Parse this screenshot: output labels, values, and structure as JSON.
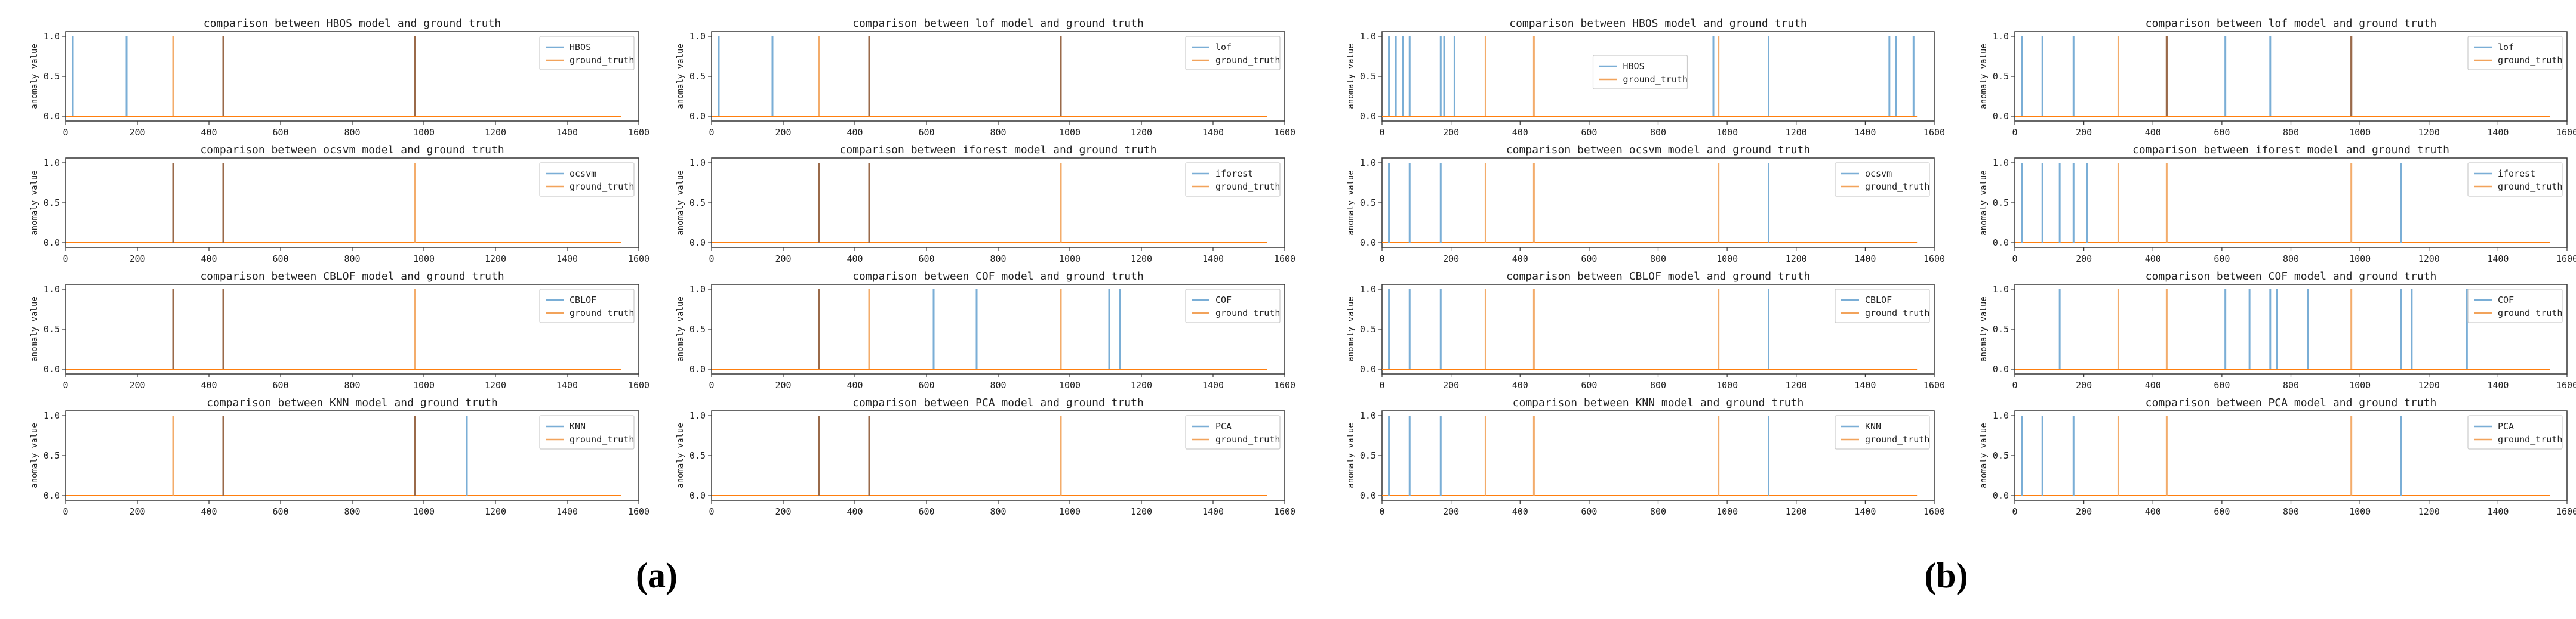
{
  "panel_labels": [
    "(a)",
    "(b)"
  ],
  "colors": {
    "model": "#7aaed6",
    "ground_truth": "#f2a35b",
    "overlap": "#9a6a4a",
    "axis": "#333333",
    "baseline_model": "#1f77b4",
    "baseline_gt": "#ff7f0e"
  },
  "axis": {
    "ylabel": "anomaly value",
    "xticks": [
      "0",
      "200",
      "400",
      "600",
      "800",
      "1000",
      "1200",
      "1400",
      "1600"
    ],
    "yticks": [
      "0.0",
      "0.5",
      "1.0"
    ]
  },
  "chart_data": [
    {
      "group": "(a)",
      "model": "HBOS",
      "type": "line",
      "title": "comparison between HBOS model and ground truth",
      "legend": [
        "HBOS",
        "ground_truth"
      ],
      "legend_position": "upper-right",
      "xlim": [
        0,
        1600
      ],
      "ylim": [
        0,
        1
      ],
      "series_end": 1550,
      "model_spikes": [
        20,
        170,
        440,
        975
      ],
      "ground_truth_spikes": [
        300,
        440,
        975
      ]
    },
    {
      "group": "(a)",
      "model": "lof",
      "type": "line",
      "title": "comparison between lof model and ground truth",
      "legend": [
        "lof",
        "ground_truth"
      ],
      "legend_position": "upper-right",
      "xlim": [
        0,
        1600
      ],
      "ylim": [
        0,
        1
      ],
      "series_end": 1550,
      "model_spikes": [
        20,
        170,
        440,
        975
      ],
      "ground_truth_spikes": [
        300,
        440,
        975
      ]
    },
    {
      "group": "(a)",
      "model": "ocsvm",
      "type": "line",
      "title": "comparison between ocsvm model and ground truth",
      "legend": [
        "ocsvm",
        "ground_truth"
      ],
      "legend_position": "upper-right",
      "xlim": [
        0,
        1600
      ],
      "ylim": [
        0,
        1
      ],
      "series_end": 1550,
      "model_spikes": [
        300,
        440
      ],
      "ground_truth_spikes": [
        300,
        440,
        975
      ]
    },
    {
      "group": "(a)",
      "model": "iforest",
      "type": "line",
      "title": "comparison between iforest model and ground truth",
      "legend": [
        "iforest",
        "ground_truth"
      ],
      "legend_position": "upper-right",
      "xlim": [
        0,
        1600
      ],
      "ylim": [
        0,
        1
      ],
      "series_end": 1550,
      "model_spikes": [
        300,
        440
      ],
      "ground_truth_spikes": [
        300,
        440,
        975
      ]
    },
    {
      "group": "(a)",
      "model": "CBLOF",
      "type": "line",
      "title": "comparison between CBLOF model and ground truth",
      "legend": [
        "CBLOF",
        "ground_truth"
      ],
      "legend_position": "upper-right",
      "xlim": [
        0,
        1600
      ],
      "ylim": [
        0,
        1
      ],
      "series_end": 1550,
      "model_spikes": [
        300,
        440
      ],
      "ground_truth_spikes": [
        300,
        440,
        975
      ]
    },
    {
      "group": "(a)",
      "model": "COF",
      "type": "line",
      "title": "comparison between COF model and ground truth",
      "legend": [
        "COF",
        "ground_truth"
      ],
      "legend_position": "upper-right",
      "xlim": [
        0,
        1600
      ],
      "ylim": [
        0,
        1
      ],
      "series_end": 1550,
      "model_spikes": [
        300,
        620,
        740,
        1110,
        1140
      ],
      "ground_truth_spikes": [
        300,
        440,
        975
      ]
    },
    {
      "group": "(a)",
      "model": "KNN",
      "type": "line",
      "title": "comparison between KNN model and ground truth",
      "legend": [
        "KNN",
        "ground_truth"
      ],
      "legend_position": "upper-right",
      "xlim": [
        0,
        1600
      ],
      "ylim": [
        0,
        1
      ],
      "series_end": 1550,
      "model_spikes": [
        440,
        975,
        1120
      ],
      "ground_truth_spikes": [
        300,
        440,
        975
      ]
    },
    {
      "group": "(a)",
      "model": "PCA",
      "type": "line",
      "title": "comparison between PCA model and ground truth",
      "legend": [
        "PCA",
        "ground_truth"
      ],
      "legend_position": "upper-right",
      "xlim": [
        0,
        1600
      ],
      "ylim": [
        0,
        1
      ],
      "series_end": 1550,
      "model_spikes": [
        300,
        440
      ],
      "ground_truth_spikes": [
        300,
        440,
        975
      ]
    },
    {
      "group": "(b)",
      "model": "HBOS",
      "type": "line",
      "title": "comparison between HBOS model and ground truth",
      "legend": [
        "HBOS",
        "ground_truth"
      ],
      "legend_position": "center",
      "xlim": [
        0,
        1600
      ],
      "ylim": [
        0,
        1
      ],
      "series_end": 1550,
      "model_spikes": [
        20,
        40,
        60,
        80,
        170,
        180,
        210,
        960,
        1120,
        1470,
        1490,
        1540
      ],
      "ground_truth_spikes": [
        300,
        440,
        975
      ]
    },
    {
      "group": "(b)",
      "model": "lof",
      "type": "line",
      "title": "comparison between lof model and ground truth",
      "legend": [
        "lof",
        "ground_truth"
      ],
      "legend_position": "upper-right",
      "xlim": [
        0,
        1600
      ],
      "ylim": [
        0,
        1
      ],
      "series_end": 1550,
      "model_spikes": [
        20,
        80,
        170,
        440,
        610,
        740,
        975
      ],
      "ground_truth_spikes": [
        300,
        440,
        975
      ]
    },
    {
      "group": "(b)",
      "model": "ocsvm",
      "type": "line",
      "title": "comparison between ocsvm model and ground truth",
      "legend": [
        "ocsvm",
        "ground_truth"
      ],
      "legend_position": "upper-right",
      "xlim": [
        0,
        1600
      ],
      "ylim": [
        0,
        1
      ],
      "series_end": 1550,
      "model_spikes": [
        20,
        80,
        170,
        1120
      ],
      "ground_truth_spikes": [
        300,
        440,
        975
      ]
    },
    {
      "group": "(b)",
      "model": "iforest",
      "type": "line",
      "title": "comparison between iforest model and ground truth",
      "legend": [
        "iforest",
        "ground_truth"
      ],
      "legend_position": "upper-right",
      "xlim": [
        0,
        1600
      ],
      "ylim": [
        0,
        1
      ],
      "series_end": 1550,
      "model_spikes": [
        20,
        80,
        130,
        170,
        210,
        1120
      ],
      "ground_truth_spikes": [
        300,
        440,
        975
      ]
    },
    {
      "group": "(b)",
      "model": "CBLOF",
      "type": "line",
      "title": "comparison between CBLOF model and ground truth",
      "legend": [
        "CBLOF",
        "ground_truth"
      ],
      "legend_position": "upper-right",
      "xlim": [
        0,
        1600
      ],
      "ylim": [
        0,
        1
      ],
      "series_end": 1550,
      "model_spikes": [
        20,
        80,
        170,
        1120
      ],
      "ground_truth_spikes": [
        300,
        440,
        975
      ]
    },
    {
      "group": "(b)",
      "model": "COF",
      "type": "line",
      "title": "comparison between COF model and ground truth",
      "legend": [
        "COF",
        "ground_truth"
      ],
      "legend_position": "upper-right",
      "xlim": [
        0,
        1600
      ],
      "ylim": [
        0,
        1
      ],
      "series_end": 1550,
      "model_spikes": [
        130,
        610,
        680,
        740,
        760,
        850,
        1120,
        1150,
        1310
      ],
      "ground_truth_spikes": [
        300,
        440,
        975
      ]
    },
    {
      "group": "(b)",
      "model": "KNN",
      "type": "line",
      "title": "comparison between KNN model and ground truth",
      "legend": [
        "KNN",
        "ground_truth"
      ],
      "legend_position": "upper-right",
      "xlim": [
        0,
        1600
      ],
      "ylim": [
        0,
        1
      ],
      "series_end": 1550,
      "model_spikes": [
        20,
        80,
        170,
        1120
      ],
      "ground_truth_spikes": [
        300,
        440,
        975
      ]
    },
    {
      "group": "(b)",
      "model": "PCA",
      "type": "line",
      "title": "comparison between PCA model and ground truth",
      "legend": [
        "PCA",
        "ground_truth"
      ],
      "legend_position": "upper-right",
      "xlim": [
        0,
        1600
      ],
      "ylim": [
        0,
        1
      ],
      "series_end": 1550,
      "model_spikes": [
        20,
        80,
        170,
        1120
      ],
      "ground_truth_spikes": [
        300,
        440,
        975
      ]
    }
  ]
}
